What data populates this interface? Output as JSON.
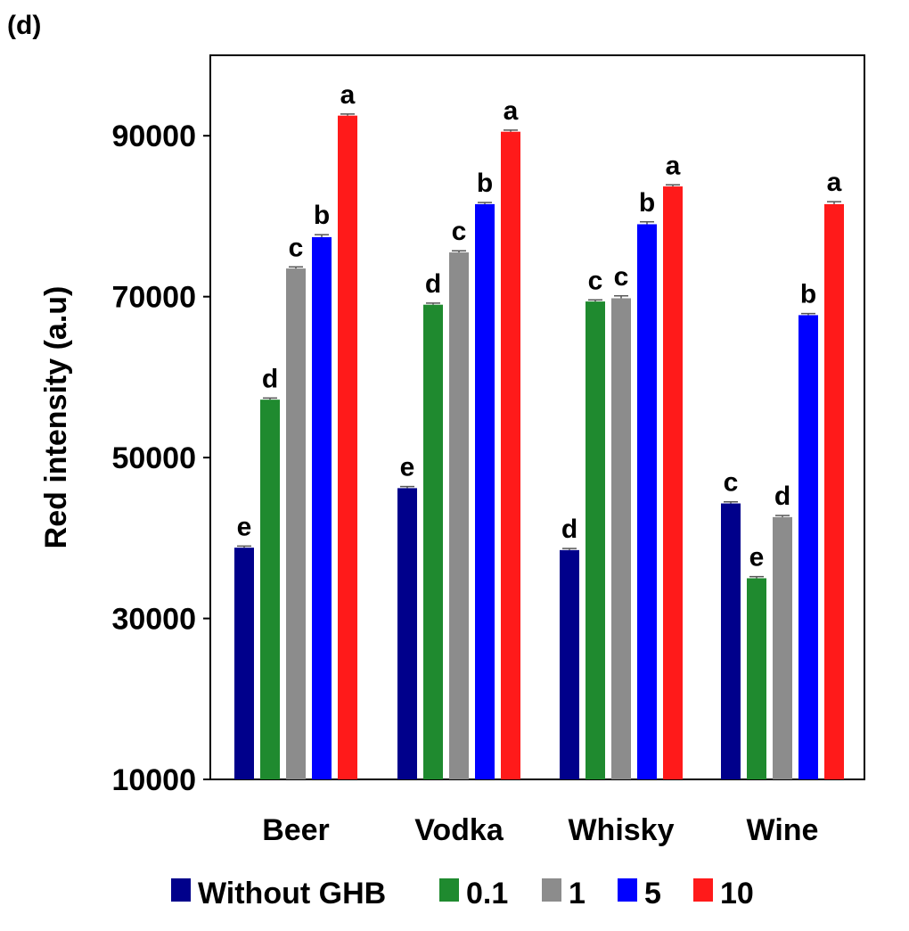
{
  "panel_label": "(d)",
  "chart_data": {
    "type": "bar",
    "title": "",
    "xlabel": "",
    "ylabel": "Red intensity (a.u)",
    "ylim": [
      10000,
      100000
    ],
    "yticks": [
      10000,
      30000,
      50000,
      70000,
      90000
    ],
    "grid": false,
    "legend_position": "bottom",
    "categories": [
      "Beer",
      "Vodka",
      "Whisky",
      "Wine"
    ],
    "series": [
      {
        "name": "Without GHB",
        "color": "#00008b",
        "values": [
          38800,
          46200,
          38500,
          44300
        ],
        "errors": [
          200,
          200,
          200,
          200
        ],
        "letters": [
          "e",
          "e",
          "d",
          "c"
        ]
      },
      {
        "name": "0.1",
        "color": "#1f8a2f",
        "values": [
          57200,
          69000,
          69400,
          35000
        ],
        "errors": [
          200,
          200,
          200,
          200
        ],
        "letters": [
          "d",
          "d",
          "c",
          "e"
        ]
      },
      {
        "name": "1",
        "color": "#8c8c8c",
        "values": [
          73500,
          75500,
          69800,
          42600
        ],
        "errors": [
          200,
          200,
          300,
          200
        ],
        "letters": [
          "c",
          "c",
          "c",
          "d"
        ]
      },
      {
        "name": "5",
        "color": "#0000ff",
        "values": [
          77400,
          81500,
          79000,
          67700
        ],
        "errors": [
          300,
          200,
          300,
          200
        ],
        "letters": [
          "b",
          "b",
          "b",
          "b"
        ]
      },
      {
        "name": "10",
        "color": "#ff1a1a",
        "values": [
          92500,
          90500,
          83700,
          81500
        ],
        "errors": [
          200,
          200,
          200,
          300
        ],
        "letters": [
          "a",
          "a",
          "a",
          "a"
        ]
      }
    ]
  }
}
